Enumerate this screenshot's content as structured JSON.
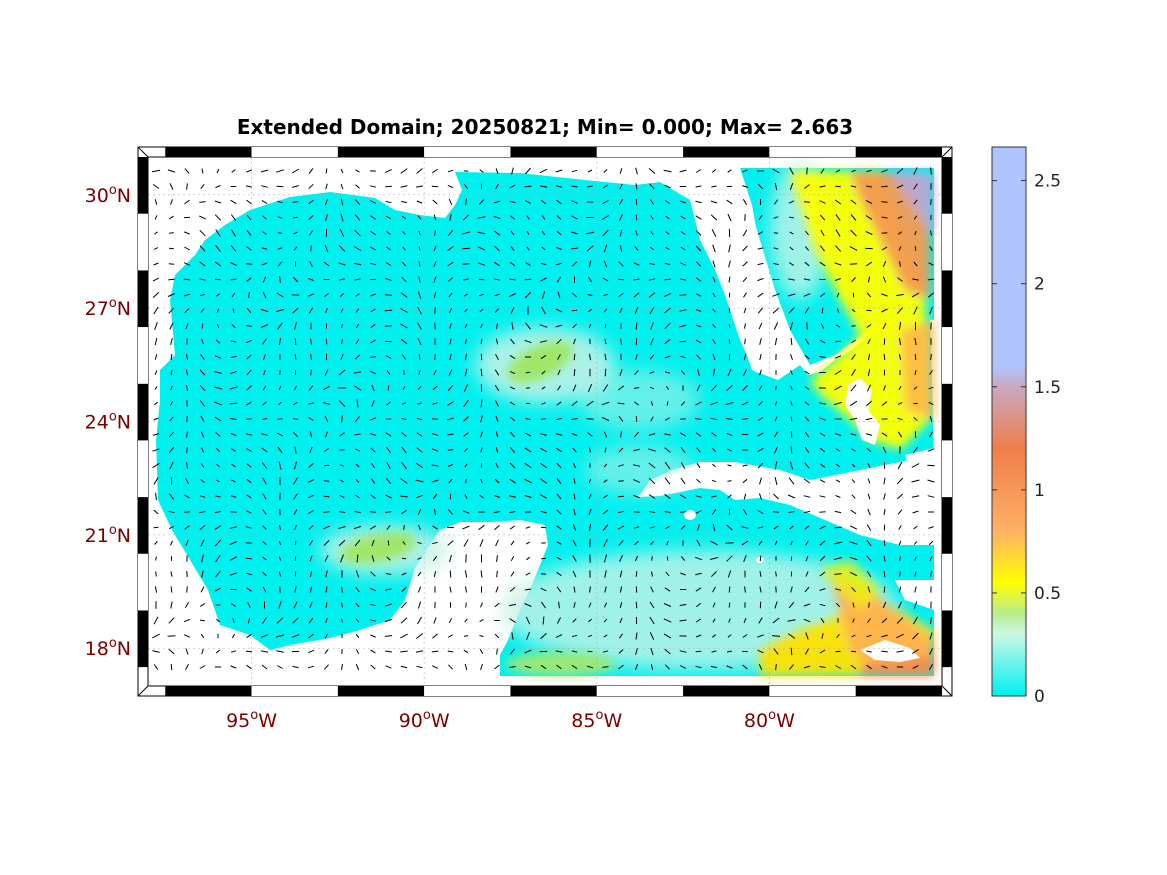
{
  "figure": {
    "title": "Extended Domain; 20250821; Min= 0.000; Max= 2.663"
  },
  "map": {
    "lon_range": [
      -98.0,
      -75.0
    ],
    "lat_range": [
      17.0,
      31.0
    ],
    "lat_ticks": [
      {
        "value": 30,
        "num": "30",
        "deg": "o",
        "hemi": "N"
      },
      {
        "value": 27,
        "num": "27",
        "deg": "o",
        "hemi": "N"
      },
      {
        "value": 24,
        "num": "24",
        "deg": "o",
        "hemi": "N"
      },
      {
        "value": 21,
        "num": "21",
        "deg": "o",
        "hemi": "N"
      },
      {
        "value": 18,
        "num": "18",
        "deg": "o",
        "hemi": "N"
      }
    ],
    "lon_ticks": [
      {
        "value": -95,
        "num": "95",
        "deg": "o",
        "hemi": "W"
      },
      {
        "value": -90,
        "num": "90",
        "deg": "o",
        "hemi": "W"
      },
      {
        "value": -85,
        "num": "85",
        "deg": "o",
        "hemi": "W"
      },
      {
        "value": -80,
        "num": "80",
        "deg": "o",
        "hemi": "W"
      }
    ],
    "label_color": "#7a0000",
    "field_color_low": "#00f0f0",
    "land_color": "#ffffff",
    "vector_color": "#000000"
  },
  "colorbar": {
    "range": [
      0,
      2.663
    ],
    "ticks": [
      {
        "value": 0,
        "label": "0"
      },
      {
        "value": 0.5,
        "label": "0.5"
      },
      {
        "value": 1,
        "label": "1"
      },
      {
        "value": 1.5,
        "label": "1.5"
      },
      {
        "value": 2,
        "label": "2"
      },
      {
        "value": 2.5,
        "label": "2.5"
      }
    ],
    "stops": [
      {
        "value": 0.0,
        "color": "#00f0f0"
      },
      {
        "value": 0.3,
        "color": "#ccf7e6"
      },
      {
        "value": 0.4,
        "color": "#b8ec8c"
      },
      {
        "value": 0.55,
        "color": "#ffff00"
      },
      {
        "value": 0.8,
        "color": "#ffb066"
      },
      {
        "value": 1.2,
        "color": "#ef7f4a"
      },
      {
        "value": 1.5,
        "color": "#c9a8c0"
      },
      {
        "value": 1.6,
        "color": "#b0c4ff"
      },
      {
        "value": 2.663,
        "color": "#b0c4ff"
      }
    ]
  },
  "chart_data": {
    "type": "heatmap",
    "title": "Extended Domain; 20250821; Min= 0.000; Max= 2.663",
    "xlabel": "",
    "ylabel": "",
    "xlim": [
      -98.0,
      -75.0
    ],
    "ylim": [
      17.0,
      31.0
    ],
    "x_ticks": [
      "95oW",
      "90oW",
      "85oW",
      "80oW"
    ],
    "y_ticks": [
      "30oN",
      "27oN",
      "24oN",
      "21oN",
      "18oN"
    ],
    "color_range": [
      0,
      2.663
    ],
    "min": 0.0,
    "max": 2.663,
    "colorbar_ticks": [
      0,
      0.5,
      1,
      1.5,
      2,
      2.5
    ]
  }
}
